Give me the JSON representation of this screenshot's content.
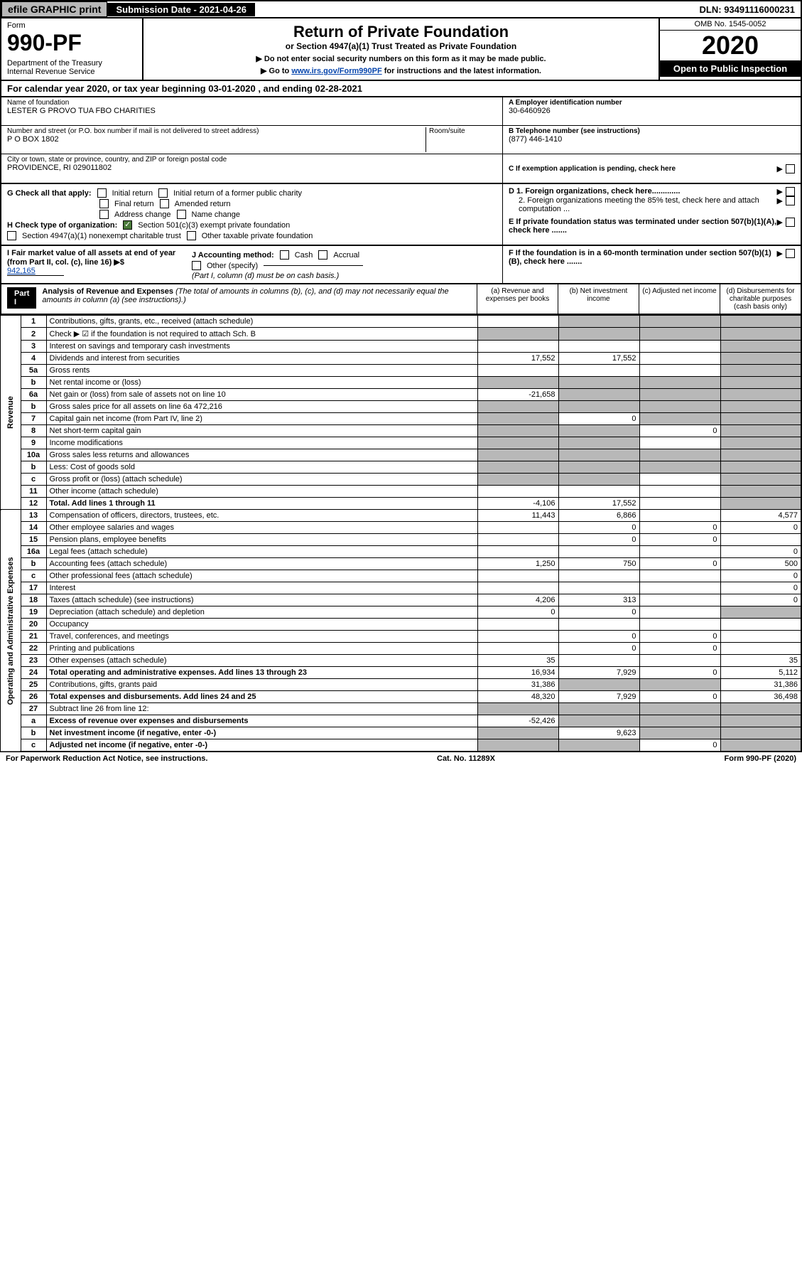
{
  "topbar": {
    "efile": "efile GRAPHIC print",
    "submission": "Submission Date - 2021-04-26",
    "dln": "DLN: 93491116000231"
  },
  "header": {
    "form_label": "Form",
    "form_number": "990-PF",
    "dept": "Department of the Treasury\nInternal Revenue Service",
    "title": "Return of Private Foundation",
    "subtitle": "or Section 4947(a)(1) Trust Treated as Private Foundation",
    "instruct1": "▶ Do not enter social security numbers on this form as it may be made public.",
    "instruct2_pre": "▶ Go to ",
    "instruct2_link": "www.irs.gov/Form990PF",
    "instruct2_post": " for instructions and the latest information.",
    "omb": "OMB No. 1545-0052",
    "year": "2020",
    "open": "Open to Public Inspection"
  },
  "calyear": "For calendar year 2020, or tax year beginning 03-01-2020               , and ending 02-28-2021",
  "info": {
    "name_label": "Name of foundation",
    "name": "LESTER G PROVO TUA FBO CHARITIES",
    "addr_label": "Number and street (or P.O. box number if mail is not delivered to street address)",
    "addr": "P O BOX 1802",
    "room_label": "Room/suite",
    "city_label": "City or town, state or province, country, and ZIP or foreign postal code",
    "city": "PROVIDENCE, RI  029011802",
    "ein_label": "A Employer identification number",
    "ein": "30-6460926",
    "phone_label": "B Telephone number (see instructions)",
    "phone": "(877) 446-1410",
    "c_label": "C If exemption application is pending, check here",
    "d1": "D 1. Foreign organizations, check here.............",
    "d2": "2. Foreign organizations meeting the 85% test, check here and attach computation ...",
    "e_label": "E If private foundation status was terminated under section 507(b)(1)(A), check here .......",
    "f_label": "F If the foundation is in a 60-month termination under section 507(b)(1)(B), check here .......",
    "g_label": "G Check all that apply:",
    "g_initial": "Initial return",
    "g_initial_former": "Initial return of a former public charity",
    "g_final": "Final return",
    "g_amended": "Amended return",
    "g_address": "Address change",
    "g_name": "Name change",
    "h_label": "H Check type of organization:",
    "h_501c3": "Section 501(c)(3) exempt private foundation",
    "h_4947": "Section 4947(a)(1) nonexempt charitable trust",
    "h_other": "Other taxable private foundation",
    "i_label": "I Fair market value of all assets at end of year (from Part II, col. (c), line 16) ▶$",
    "i_val": "942,165",
    "j_label": "J Accounting method:",
    "j_cash": "Cash",
    "j_accrual": "Accrual",
    "j_other": "Other (specify)",
    "j_note": "(Part I, column (d) must be on cash basis.)"
  },
  "part1": {
    "label": "Part I",
    "title": "Analysis of Revenue and Expenses",
    "title_note": "(The total of amounts in columns (b), (c), and (d) may not necessarily equal the amounts in column (a) (see instructions).)",
    "col_a": "(a)    Revenue and expenses per books",
    "col_b": "(b)  Net investment income",
    "col_c": "(c)  Adjusted net income",
    "col_d": "(d)  Disbursements for charitable purposes (cash basis only)"
  },
  "sidelabels": {
    "rev": "Revenue",
    "exp": "Operating and Administrative Expenses"
  },
  "rows": [
    {
      "n": "1",
      "d": "Contributions, gifts, grants, etc., received (attach schedule)",
      "a": "",
      "b": "shaded",
      "c": "shaded",
      "x": "shaded"
    },
    {
      "n": "2",
      "d": "Check ▶ ☑ if the foundation is not required to attach Sch. B",
      "a": "shaded",
      "b": "shaded",
      "c": "shaded",
      "x": "shaded"
    },
    {
      "n": "3",
      "d": "Interest on savings and temporary cash investments",
      "a": "",
      "b": "",
      "c": "",
      "x": "shaded"
    },
    {
      "n": "4",
      "d": "Dividends and interest from securities",
      "a": "17,552",
      "b": "17,552",
      "c": "",
      "x": "shaded"
    },
    {
      "n": "5a",
      "d": "Gross rents",
      "a": "",
      "b": "",
      "c": "",
      "x": "shaded"
    },
    {
      "n": "b",
      "d": "Net rental income or (loss)",
      "a": "shaded",
      "b": "shaded",
      "c": "shaded",
      "x": "shaded"
    },
    {
      "n": "6a",
      "d": "Net gain or (loss) from sale of assets not on line 10",
      "a": "-21,658",
      "b": "shaded",
      "c": "shaded",
      "x": "shaded"
    },
    {
      "n": "b",
      "d": "Gross sales price for all assets on line 6a          472,216",
      "a": "shaded",
      "b": "shaded",
      "c": "shaded",
      "x": "shaded"
    },
    {
      "n": "7",
      "d": "Capital gain net income (from Part IV, line 2)",
      "a": "shaded",
      "b": "0",
      "c": "shaded",
      "x": "shaded"
    },
    {
      "n": "8",
      "d": "Net short-term capital gain",
      "a": "shaded",
      "b": "shaded",
      "c": "0",
      "x": "shaded"
    },
    {
      "n": "9",
      "d": "Income modifications",
      "a": "shaded",
      "b": "shaded",
      "c": "",
      "x": "shaded"
    },
    {
      "n": "10a",
      "d": "Gross sales less returns and allowances",
      "a": "shaded",
      "b": "shaded",
      "c": "shaded",
      "x": "shaded"
    },
    {
      "n": "b",
      "d": "Less: Cost of goods sold",
      "a": "shaded",
      "b": "shaded",
      "c": "shaded",
      "x": "shaded"
    },
    {
      "n": "c",
      "d": "Gross profit or (loss) (attach schedule)",
      "a": "shaded",
      "b": "shaded",
      "c": "",
      "x": "shaded"
    },
    {
      "n": "11",
      "d": "Other income (attach schedule)",
      "a": "",
      "b": "",
      "c": "",
      "x": "shaded"
    },
    {
      "n": "12",
      "d": "Total. Add lines 1 through 11",
      "a": "-4,106",
      "b": "17,552",
      "c": "",
      "x": "shaded",
      "bold": true
    },
    {
      "n": "13",
      "d": "Compensation of officers, directors, trustees, etc.",
      "a": "11,443",
      "b": "6,866",
      "c": "",
      "x": "4,577"
    },
    {
      "n": "14",
      "d": "Other employee salaries and wages",
      "a": "",
      "b": "0",
      "c": "0",
      "x": "0"
    },
    {
      "n": "15",
      "d": "Pension plans, employee benefits",
      "a": "",
      "b": "0",
      "c": "0",
      "x": ""
    },
    {
      "n": "16a",
      "d": "Legal fees (attach schedule)",
      "a": "",
      "b": "",
      "c": "",
      "x": "0"
    },
    {
      "n": "b",
      "d": "Accounting fees (attach schedule)",
      "a": "1,250",
      "b": "750",
      "c": "0",
      "x": "500"
    },
    {
      "n": "c",
      "d": "Other professional fees (attach schedule)",
      "a": "",
      "b": "",
      "c": "",
      "x": "0"
    },
    {
      "n": "17",
      "d": "Interest",
      "a": "",
      "b": "",
      "c": "",
      "x": "0"
    },
    {
      "n": "18",
      "d": "Taxes (attach schedule) (see instructions)",
      "a": "4,206",
      "b": "313",
      "c": "",
      "x": "0"
    },
    {
      "n": "19",
      "d": "Depreciation (attach schedule) and depletion",
      "a": "0",
      "b": "0",
      "c": "",
      "x": "shaded"
    },
    {
      "n": "20",
      "d": "Occupancy",
      "a": "",
      "b": "",
      "c": "",
      "x": ""
    },
    {
      "n": "21",
      "d": "Travel, conferences, and meetings",
      "a": "",
      "b": "0",
      "c": "0",
      "x": ""
    },
    {
      "n": "22",
      "d": "Printing and publications",
      "a": "",
      "b": "0",
      "c": "0",
      "x": ""
    },
    {
      "n": "23",
      "d": "Other expenses (attach schedule)",
      "a": "35",
      "b": "",
      "c": "",
      "x": "35"
    },
    {
      "n": "24",
      "d": "Total operating and administrative expenses. Add lines 13 through 23",
      "a": "16,934",
      "b": "7,929",
      "c": "0",
      "x": "5,112",
      "bold": true
    },
    {
      "n": "25",
      "d": "Contributions, gifts, grants paid",
      "a": "31,386",
      "b": "shaded",
      "c": "shaded",
      "x": "31,386"
    },
    {
      "n": "26",
      "d": "Total expenses and disbursements. Add lines 24 and 25",
      "a": "48,320",
      "b": "7,929",
      "c": "0",
      "x": "36,498",
      "bold": true
    },
    {
      "n": "27",
      "d": "Subtract line 26 from line 12:",
      "a": "shaded",
      "b": "shaded",
      "c": "shaded",
      "x": "shaded"
    },
    {
      "n": "a",
      "d": "Excess of revenue over expenses and disbursements",
      "a": "-52,426",
      "b": "shaded",
      "c": "shaded",
      "x": "shaded",
      "bold": true
    },
    {
      "n": "b",
      "d": "Net investment income (if negative, enter -0-)",
      "a": "shaded",
      "b": "9,623",
      "c": "shaded",
      "x": "shaded",
      "bold": true
    },
    {
      "n": "c",
      "d": "Adjusted net income (if negative, enter -0-)",
      "a": "shaded",
      "b": "shaded",
      "c": "0",
      "x": "shaded",
      "bold": true
    }
  ],
  "footer": {
    "left": "For Paperwork Reduction Act Notice, see instructions.",
    "mid": "Cat. No. 11289X",
    "right": "Form 990-PF (2020)"
  }
}
